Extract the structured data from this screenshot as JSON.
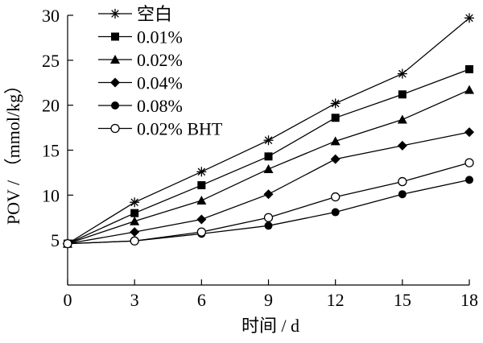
{
  "chart_data": {
    "type": "line",
    "xlabel": "时间 / d",
    "ylabel": "POV / （mmol/kg）",
    "xlim": [
      0,
      18
    ],
    "ylim": [
      0,
      30
    ],
    "xticks": [
      "0",
      "3",
      "6",
      "9",
      "12",
      "15",
      "18"
    ],
    "yticks": [
      "5",
      "10",
      "15",
      "20",
      "25",
      "30"
    ],
    "grid": false,
    "legend_position": "top-left",
    "x": [
      0,
      3,
      6,
      9,
      12,
      15,
      18
    ],
    "series": [
      {
        "name": "空白",
        "marker": "asterisk",
        "values": [
          4.6,
          9.2,
          12.6,
          16.1,
          20.2,
          23.5,
          29.7
        ]
      },
      {
        "name": "0.01%",
        "marker": "square",
        "values": [
          4.6,
          8.0,
          11.1,
          14.3,
          18.6,
          21.2,
          24.0
        ]
      },
      {
        "name": "0.02%",
        "marker": "triangle",
        "values": [
          4.6,
          7.1,
          9.4,
          12.9,
          16.0,
          18.4,
          21.7
        ]
      },
      {
        "name": "0.04%",
        "marker": "diamond",
        "values": [
          4.6,
          5.9,
          7.3,
          10.1,
          14.0,
          15.5,
          17.0
        ]
      },
      {
        "name": "0.08%",
        "marker": "circle",
        "values": [
          4.6,
          4.9,
          5.7,
          6.6,
          8.1,
          10.1,
          11.7
        ]
      },
      {
        "name": "0.02% BHT",
        "marker": "open-circle",
        "values": [
          4.6,
          4.9,
          5.9,
          7.5,
          9.8,
          11.5,
          13.6
        ]
      }
    ]
  }
}
